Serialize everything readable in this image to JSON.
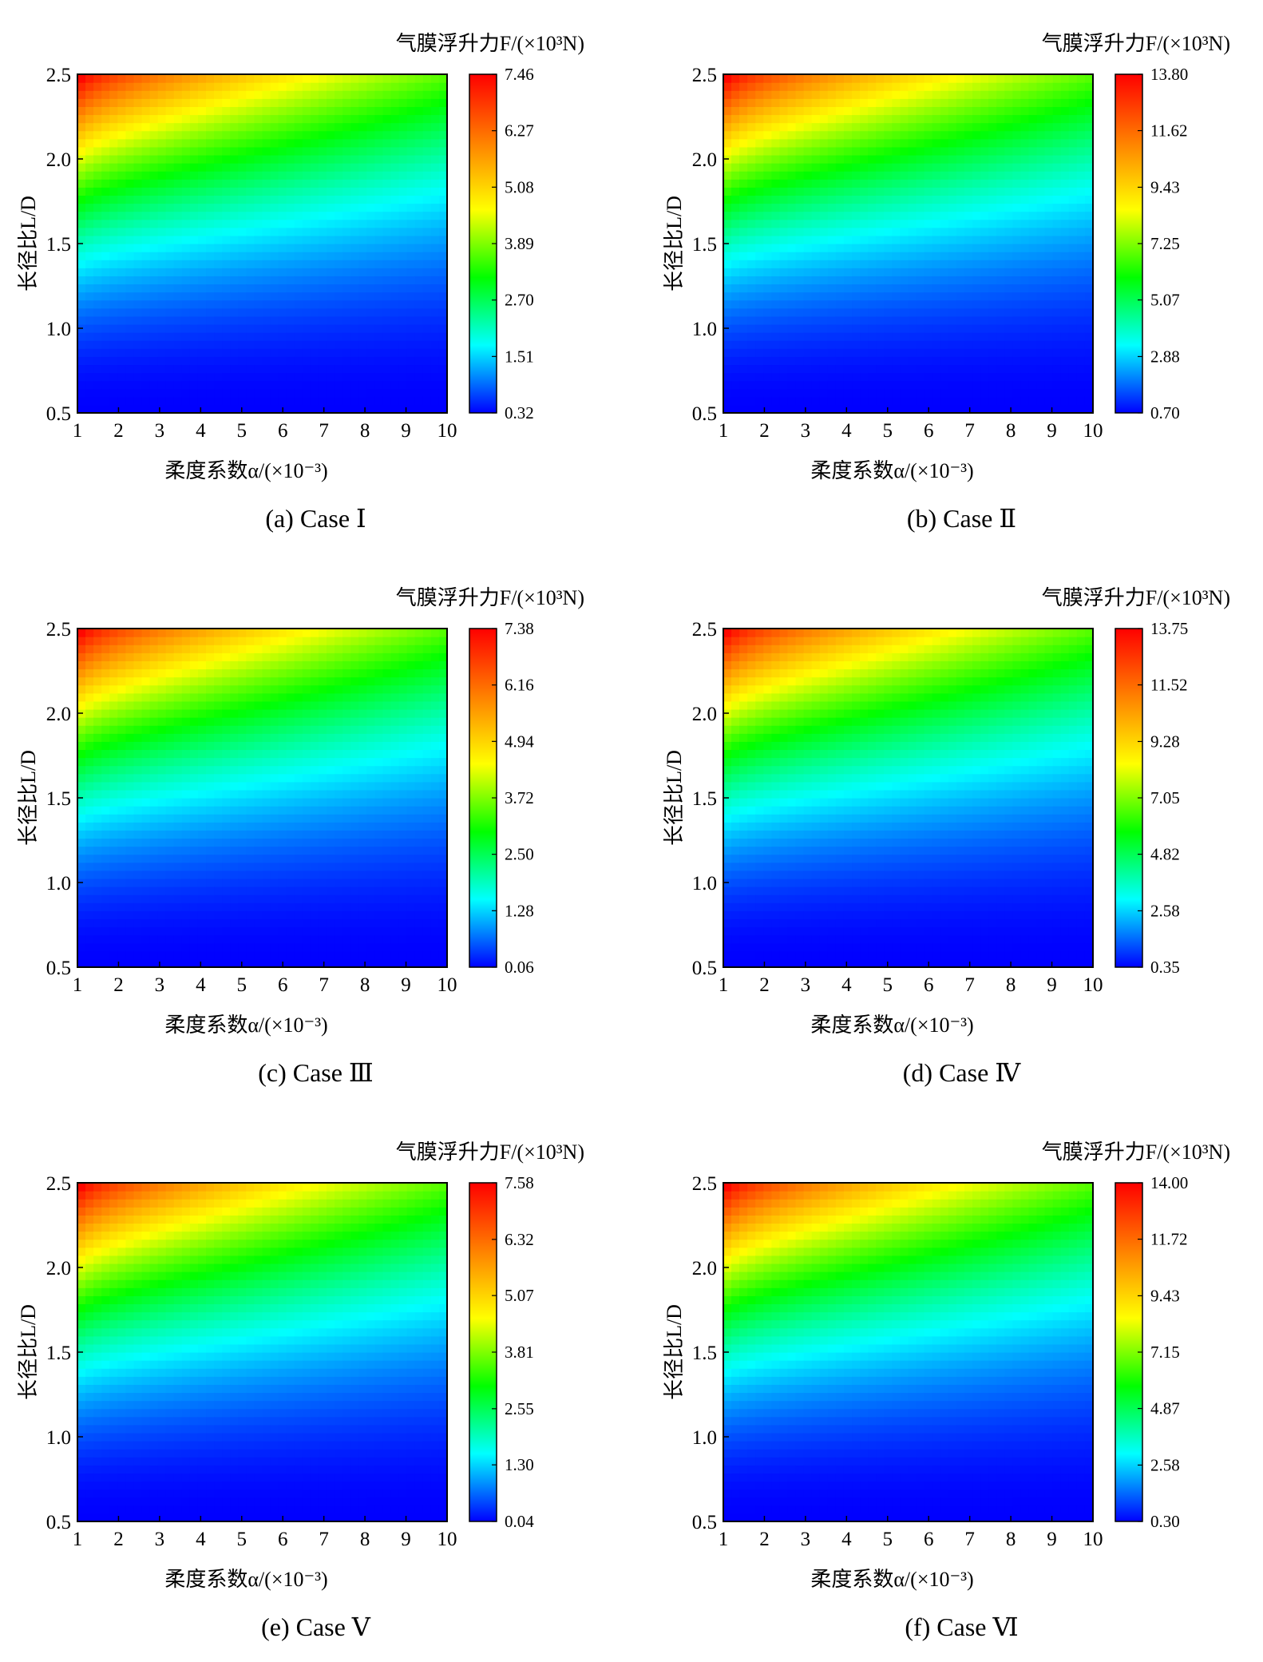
{
  "common": {
    "colorbar_title": "气膜浮升力F/(×10³N)",
    "xlabel": "柔度系数α/(×10⁻³)",
    "ylabel": "长径比L/D",
    "colormap": [
      "#0000ff",
      "#00ffff",
      "#00ff00",
      "#ffff00",
      "#ff8000",
      "#ff0000"
    ]
  },
  "chart_data": [
    {
      "type": "heatmap",
      "caption": "(a) Case Ⅰ",
      "x": [
        1,
        2,
        3,
        4,
        5,
        6,
        7,
        8,
        9,
        10
      ],
      "y": [
        0.5,
        1.0,
        1.5,
        2.0,
        2.5
      ],
      "x_ticks": [
        "1",
        "2",
        "3",
        "4",
        "5",
        "6",
        "7",
        "8",
        "9",
        "10"
      ],
      "y_ticks": [
        "0.5",
        "1.0",
        "1.5",
        "2.0",
        "2.5"
      ],
      "xlim": [
        1,
        10
      ],
      "ylim": [
        0.5,
        2.5
      ],
      "colorbar_ticks": [
        "0.32",
        "1.51",
        "2.70",
        "3.89",
        "5.08",
        "6.27",
        "7.46"
      ],
      "colorbar_range": [
        0.32,
        7.46
      ]
    },
    {
      "type": "heatmap",
      "caption": "(b) Case Ⅱ",
      "x": [
        1,
        2,
        3,
        4,
        5,
        6,
        7,
        8,
        9,
        10
      ],
      "y": [
        0.5,
        1.0,
        1.5,
        2.0,
        2.5
      ],
      "x_ticks": [
        "1",
        "2",
        "3",
        "4",
        "5",
        "6",
        "7",
        "8",
        "9",
        "10"
      ],
      "y_ticks": [
        "0.5",
        "1.0",
        "1.5",
        "2.0",
        "2.5"
      ],
      "xlim": [
        1,
        10
      ],
      "ylim": [
        0.5,
        2.5
      ],
      "colorbar_ticks": [
        "0.70",
        "2.88",
        "5.07",
        "7.25",
        "9.43",
        "11.62",
        "13.80"
      ],
      "colorbar_range": [
        0.7,
        13.8
      ]
    },
    {
      "type": "heatmap",
      "caption": "(c) Case Ⅲ",
      "x": [
        1,
        2,
        3,
        4,
        5,
        6,
        7,
        8,
        9,
        10
      ],
      "y": [
        0.5,
        1.0,
        1.5,
        2.0,
        2.5
      ],
      "x_ticks": [
        "1",
        "2",
        "3",
        "4",
        "5",
        "6",
        "7",
        "8",
        "9",
        "10"
      ],
      "y_ticks": [
        "0.5",
        "1.0",
        "1.5",
        "2.0",
        "2.5"
      ],
      "xlim": [
        1,
        10
      ],
      "ylim": [
        0.5,
        2.5
      ],
      "colorbar_ticks": [
        "0.06",
        "1.28",
        "2.50",
        "3.72",
        "4.94",
        "6.16",
        "7.38"
      ],
      "colorbar_range": [
        0.06,
        7.38
      ]
    },
    {
      "type": "heatmap",
      "caption": "(d) Case Ⅳ",
      "x": [
        1,
        2,
        3,
        4,
        5,
        6,
        7,
        8,
        9,
        10
      ],
      "y": [
        0.5,
        1.0,
        1.5,
        2.0,
        2.5
      ],
      "x_ticks": [
        "1",
        "2",
        "3",
        "4",
        "5",
        "6",
        "7",
        "8",
        "9",
        "10"
      ],
      "y_ticks": [
        "0.5",
        "1.0",
        "1.5",
        "2.0",
        "2.5"
      ],
      "xlim": [
        1,
        10
      ],
      "ylim": [
        0.5,
        2.5
      ],
      "colorbar_ticks": [
        "0.35",
        "2.58",
        "4.82",
        "7.05",
        "9.28",
        "11.52",
        "13.75"
      ],
      "colorbar_range": [
        0.35,
        13.75
      ]
    },
    {
      "type": "heatmap",
      "caption": "(e) Case Ⅴ",
      "x": [
        1,
        2,
        3,
        4,
        5,
        6,
        7,
        8,
        9,
        10
      ],
      "y": [
        0.5,
        1.0,
        1.5,
        2.0,
        2.5
      ],
      "x_ticks": [
        "1",
        "2",
        "3",
        "4",
        "5",
        "6",
        "7",
        "8",
        "9",
        "10"
      ],
      "y_ticks": [
        "0.5",
        "1.0",
        "1.5",
        "2.0",
        "2.5"
      ],
      "xlim": [
        1,
        10
      ],
      "ylim": [
        0.5,
        2.5
      ],
      "colorbar_ticks": [
        "0.04",
        "1.30",
        "2.55",
        "3.81",
        "5.07",
        "6.32",
        "7.58"
      ],
      "colorbar_range": [
        0.04,
        7.58
      ]
    },
    {
      "type": "heatmap",
      "caption": "(f) Case Ⅵ",
      "x": [
        1,
        2,
        3,
        4,
        5,
        6,
        7,
        8,
        9,
        10
      ],
      "y": [
        0.5,
        1.0,
        1.5,
        2.0,
        2.5
      ],
      "x_ticks": [
        "1",
        "2",
        "3",
        "4",
        "5",
        "6",
        "7",
        "8",
        "9",
        "10"
      ],
      "y_ticks": [
        "0.5",
        "1.0",
        "1.5",
        "2.0",
        "2.5"
      ],
      "xlim": [
        1,
        10
      ],
      "ylim": [
        0.5,
        2.5
      ],
      "colorbar_ticks": [
        "0.30",
        "2.58",
        "4.87",
        "7.15",
        "9.43",
        "11.72",
        "14.00"
      ],
      "colorbar_range": [
        0.3,
        14.0
      ]
    }
  ]
}
